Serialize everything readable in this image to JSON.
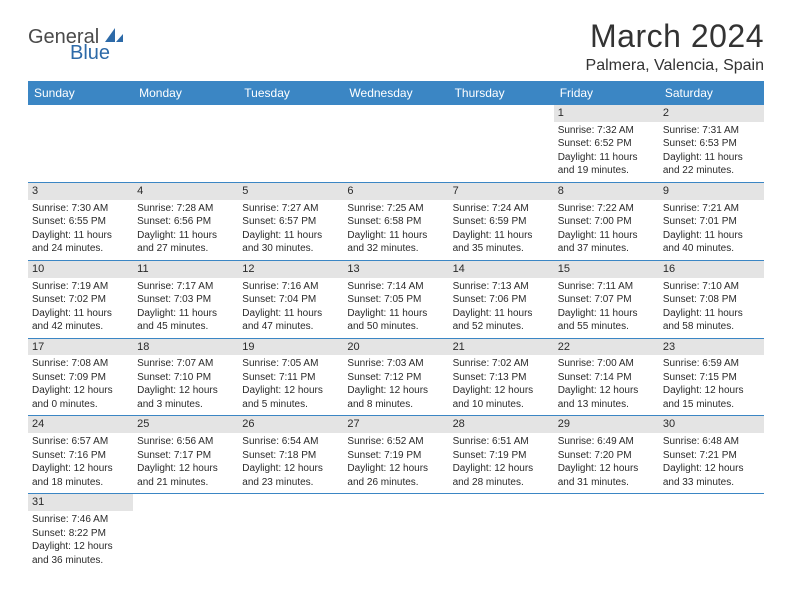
{
  "logo": {
    "text1": "General",
    "text2": "Blue"
  },
  "title": "March 2024",
  "location": "Palmera, Valencia, Spain",
  "colors": {
    "header_bg": "#3b86c4",
    "header_text": "#ffffff",
    "daynum_bg": "#e4e4e4",
    "border": "#3b86c4",
    "logo_gray": "#4a4a4a",
    "logo_blue": "#2d6aa8"
  },
  "weekdays": [
    "Sunday",
    "Monday",
    "Tuesday",
    "Wednesday",
    "Thursday",
    "Friday",
    "Saturday"
  ],
  "weeks": [
    [
      null,
      null,
      null,
      null,
      null,
      {
        "n": "1",
        "sr": "Sunrise: 7:32 AM",
        "ss": "Sunset: 6:52 PM",
        "d1": "Daylight: 11 hours",
        "d2": "and 19 minutes."
      },
      {
        "n": "2",
        "sr": "Sunrise: 7:31 AM",
        "ss": "Sunset: 6:53 PM",
        "d1": "Daylight: 11 hours",
        "d2": "and 22 minutes."
      }
    ],
    [
      {
        "n": "3",
        "sr": "Sunrise: 7:30 AM",
        "ss": "Sunset: 6:55 PM",
        "d1": "Daylight: 11 hours",
        "d2": "and 24 minutes."
      },
      {
        "n": "4",
        "sr": "Sunrise: 7:28 AM",
        "ss": "Sunset: 6:56 PM",
        "d1": "Daylight: 11 hours",
        "d2": "and 27 minutes."
      },
      {
        "n": "5",
        "sr": "Sunrise: 7:27 AM",
        "ss": "Sunset: 6:57 PM",
        "d1": "Daylight: 11 hours",
        "d2": "and 30 minutes."
      },
      {
        "n": "6",
        "sr": "Sunrise: 7:25 AM",
        "ss": "Sunset: 6:58 PM",
        "d1": "Daylight: 11 hours",
        "d2": "and 32 minutes."
      },
      {
        "n": "7",
        "sr": "Sunrise: 7:24 AM",
        "ss": "Sunset: 6:59 PM",
        "d1": "Daylight: 11 hours",
        "d2": "and 35 minutes."
      },
      {
        "n": "8",
        "sr": "Sunrise: 7:22 AM",
        "ss": "Sunset: 7:00 PM",
        "d1": "Daylight: 11 hours",
        "d2": "and 37 minutes."
      },
      {
        "n": "9",
        "sr": "Sunrise: 7:21 AM",
        "ss": "Sunset: 7:01 PM",
        "d1": "Daylight: 11 hours",
        "d2": "and 40 minutes."
      }
    ],
    [
      {
        "n": "10",
        "sr": "Sunrise: 7:19 AM",
        "ss": "Sunset: 7:02 PM",
        "d1": "Daylight: 11 hours",
        "d2": "and 42 minutes."
      },
      {
        "n": "11",
        "sr": "Sunrise: 7:17 AM",
        "ss": "Sunset: 7:03 PM",
        "d1": "Daylight: 11 hours",
        "d2": "and 45 minutes."
      },
      {
        "n": "12",
        "sr": "Sunrise: 7:16 AM",
        "ss": "Sunset: 7:04 PM",
        "d1": "Daylight: 11 hours",
        "d2": "and 47 minutes."
      },
      {
        "n": "13",
        "sr": "Sunrise: 7:14 AM",
        "ss": "Sunset: 7:05 PM",
        "d1": "Daylight: 11 hours",
        "d2": "and 50 minutes."
      },
      {
        "n": "14",
        "sr": "Sunrise: 7:13 AM",
        "ss": "Sunset: 7:06 PM",
        "d1": "Daylight: 11 hours",
        "d2": "and 52 minutes."
      },
      {
        "n": "15",
        "sr": "Sunrise: 7:11 AM",
        "ss": "Sunset: 7:07 PM",
        "d1": "Daylight: 11 hours",
        "d2": "and 55 minutes."
      },
      {
        "n": "16",
        "sr": "Sunrise: 7:10 AM",
        "ss": "Sunset: 7:08 PM",
        "d1": "Daylight: 11 hours",
        "d2": "and 58 minutes."
      }
    ],
    [
      {
        "n": "17",
        "sr": "Sunrise: 7:08 AM",
        "ss": "Sunset: 7:09 PM",
        "d1": "Daylight: 12 hours",
        "d2": "and 0 minutes."
      },
      {
        "n": "18",
        "sr": "Sunrise: 7:07 AM",
        "ss": "Sunset: 7:10 PM",
        "d1": "Daylight: 12 hours",
        "d2": "and 3 minutes."
      },
      {
        "n": "19",
        "sr": "Sunrise: 7:05 AM",
        "ss": "Sunset: 7:11 PM",
        "d1": "Daylight: 12 hours",
        "d2": "and 5 minutes."
      },
      {
        "n": "20",
        "sr": "Sunrise: 7:03 AM",
        "ss": "Sunset: 7:12 PM",
        "d1": "Daylight: 12 hours",
        "d2": "and 8 minutes."
      },
      {
        "n": "21",
        "sr": "Sunrise: 7:02 AM",
        "ss": "Sunset: 7:13 PM",
        "d1": "Daylight: 12 hours",
        "d2": "and 10 minutes."
      },
      {
        "n": "22",
        "sr": "Sunrise: 7:00 AM",
        "ss": "Sunset: 7:14 PM",
        "d1": "Daylight: 12 hours",
        "d2": "and 13 minutes."
      },
      {
        "n": "23",
        "sr": "Sunrise: 6:59 AM",
        "ss": "Sunset: 7:15 PM",
        "d1": "Daylight: 12 hours",
        "d2": "and 15 minutes."
      }
    ],
    [
      {
        "n": "24",
        "sr": "Sunrise: 6:57 AM",
        "ss": "Sunset: 7:16 PM",
        "d1": "Daylight: 12 hours",
        "d2": "and 18 minutes."
      },
      {
        "n": "25",
        "sr": "Sunrise: 6:56 AM",
        "ss": "Sunset: 7:17 PM",
        "d1": "Daylight: 12 hours",
        "d2": "and 21 minutes."
      },
      {
        "n": "26",
        "sr": "Sunrise: 6:54 AM",
        "ss": "Sunset: 7:18 PM",
        "d1": "Daylight: 12 hours",
        "d2": "and 23 minutes."
      },
      {
        "n": "27",
        "sr": "Sunrise: 6:52 AM",
        "ss": "Sunset: 7:19 PM",
        "d1": "Daylight: 12 hours",
        "d2": "and 26 minutes."
      },
      {
        "n": "28",
        "sr": "Sunrise: 6:51 AM",
        "ss": "Sunset: 7:19 PM",
        "d1": "Daylight: 12 hours",
        "d2": "and 28 minutes."
      },
      {
        "n": "29",
        "sr": "Sunrise: 6:49 AM",
        "ss": "Sunset: 7:20 PM",
        "d1": "Daylight: 12 hours",
        "d2": "and 31 minutes."
      },
      {
        "n": "30",
        "sr": "Sunrise: 6:48 AM",
        "ss": "Sunset: 7:21 PM",
        "d1": "Daylight: 12 hours",
        "d2": "and 33 minutes."
      }
    ],
    [
      {
        "n": "31",
        "sr": "Sunrise: 7:46 AM",
        "ss": "Sunset: 8:22 PM",
        "d1": "Daylight: 12 hours",
        "d2": "and 36 minutes."
      },
      null,
      null,
      null,
      null,
      null,
      null
    ]
  ]
}
